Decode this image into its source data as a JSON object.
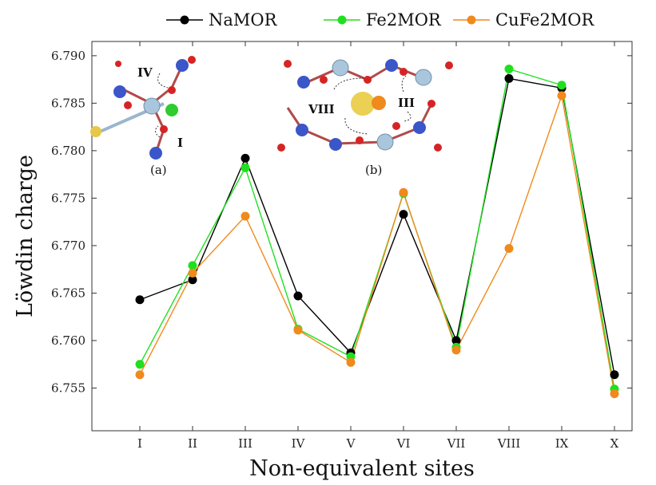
{
  "chart_data": {
    "type": "line",
    "title": "",
    "xlabel": "Non-equivalent sites",
    "ylabel": "Löwdin charge",
    "categories": [
      "I",
      "II",
      "III",
      "IV",
      "V",
      "VI",
      "VII",
      "VIII",
      "IX",
      "X"
    ],
    "ylim": [
      6.7505,
      6.7915
    ],
    "yticks": [
      6.755,
      6.76,
      6.765,
      6.77,
      6.775,
      6.78,
      6.785,
      6.79
    ],
    "ytick_labels": [
      "6.755",
      "6.760",
      "6.765",
      "6.770",
      "6.775",
      "6.780",
      "6.785",
      "6.790"
    ],
    "grid": false,
    "legend_position": "top-center",
    "series": [
      {
        "name": "NaMOR",
        "color": "#000000",
        "values": [
          6.7643,
          6.7664,
          6.7792,
          6.7647,
          6.7587,
          6.7733,
          6.76,
          6.7876,
          6.7866,
          6.7564
        ]
      },
      {
        "name": "Fe2MOR",
        "color": "#1fe01f",
        "values": [
          6.7575,
          6.7679,
          6.7782,
          6.7612,
          6.7583,
          6.7755,
          6.7593,
          6.7886,
          6.7869,
          6.7549
        ]
      },
      {
        "name": "CuFe2MOR",
        "color": "#f08a1c",
        "values": [
          6.7564,
          6.7671,
          6.7731,
          6.7611,
          6.7577,
          6.7756,
          6.759,
          6.7697,
          6.7858,
          6.7544
        ]
      }
    ],
    "insets": [
      {
        "caption": "(a)",
        "site_labels": [
          "IV",
          "I"
        ]
      },
      {
        "caption": "(b)",
        "site_labels": [
          "VIII",
          "III"
        ]
      }
    ]
  }
}
